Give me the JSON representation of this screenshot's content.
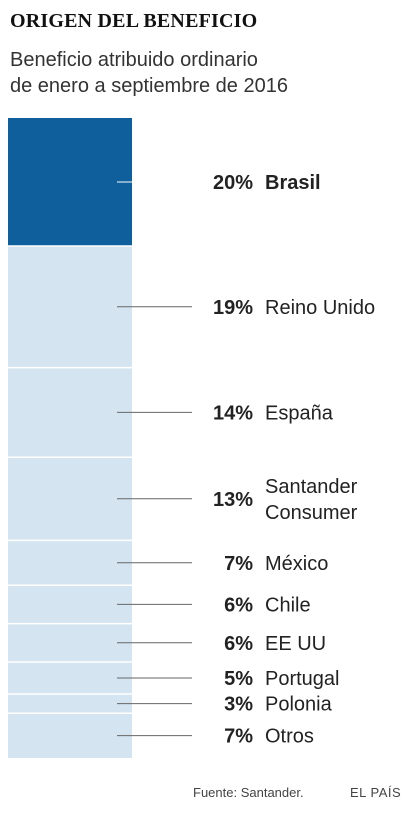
{
  "title": "ORIGEN DEL BENEFICIO",
  "subtitle_lines": [
    "Beneficio atribuido ordinario",
    "de enero a septiembre de 2016"
  ],
  "chart_data": {
    "type": "bar",
    "orientation": "stacked-vertical",
    "categories": [
      "Brasil",
      "Reino Unido",
      "España",
      "Santander Consumer",
      "México",
      "Chile",
      "EE UU",
      "Portugal",
      "Polonia",
      "Otros"
    ],
    "values": [
      20,
      19,
      14,
      13,
      7,
      6,
      6,
      5,
      3,
      7
    ],
    "value_labels": [
      "20%",
      "19%",
      "14%",
      "13%",
      "7%",
      "6%",
      "6%",
      "5%",
      "3%",
      "7%"
    ],
    "label_lines": [
      [
        "Brasil"
      ],
      [
        "Reino Unido"
      ],
      [
        "España"
      ],
      [
        "Santander",
        "Consumer"
      ],
      [
        "México"
      ],
      [
        "Chile"
      ],
      [
        "EE UU"
      ],
      [
        "Portugal"
      ],
      [
        "Polonia"
      ],
      [
        "Otros"
      ]
    ],
    "highlight_index": 0,
    "unit": "%",
    "colors": {
      "highlight": "#0e5f9b",
      "base": "#d4e5f1",
      "separator": "#ffffff",
      "leader": "#666666"
    }
  },
  "footer": {
    "source": "Fuente: Santander.",
    "brand": "EL PAÍS"
  }
}
